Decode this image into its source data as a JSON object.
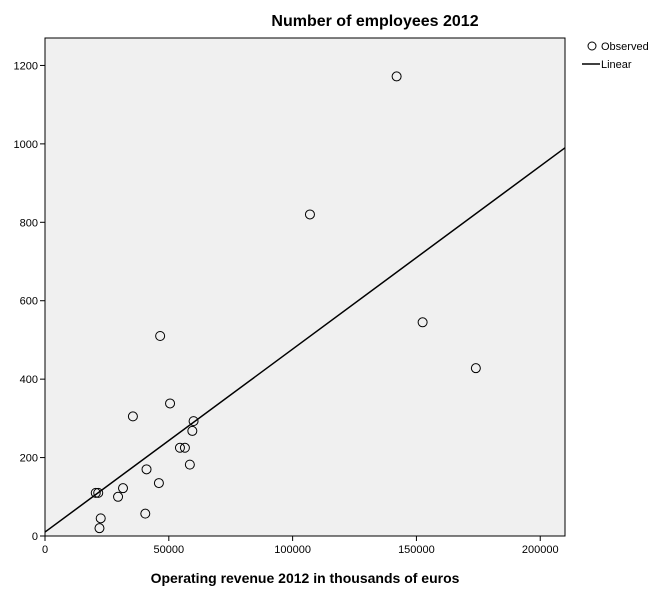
{
  "chart_data": {
    "type": "scatter",
    "title": "Number of employees 2012",
    "xlabel": "Operating revenue 2012 in thousands of euros",
    "ylabel": "",
    "xlim": [
      0,
      210000
    ],
    "ylim": [
      0,
      1270
    ],
    "xticks": [
      0,
      50000,
      100000,
      150000,
      200000
    ],
    "yticks": [
      0,
      200,
      400,
      600,
      800,
      1000,
      1200
    ],
    "grid": false,
    "legend_position": "top-right",
    "colors": {
      "plot_background": "#f0f0f0",
      "marker": "#000000",
      "line": "#000000"
    },
    "series": [
      {
        "name": "Observed",
        "kind": "markers",
        "points": [
          {
            "x": 20500,
            "y": 110
          },
          {
            "x": 21500,
            "y": 110
          },
          {
            "x": 22000,
            "y": 20
          },
          {
            "x": 22500,
            "y": 45
          },
          {
            "x": 29500,
            "y": 100
          },
          {
            "x": 31500,
            "y": 122
          },
          {
            "x": 35500,
            "y": 305
          },
          {
            "x": 40500,
            "y": 57
          },
          {
            "x": 41000,
            "y": 170
          },
          {
            "x": 46000,
            "y": 135
          },
          {
            "x": 46500,
            "y": 510
          },
          {
            "x": 50500,
            "y": 338
          },
          {
            "x": 54500,
            "y": 225
          },
          {
            "x": 56500,
            "y": 225
          },
          {
            "x": 58500,
            "y": 182
          },
          {
            "x": 59500,
            "y": 268
          },
          {
            "x": 60000,
            "y": 293
          },
          {
            "x": 107000,
            "y": 820
          },
          {
            "x": 142000,
            "y": 1172
          },
          {
            "x": 152500,
            "y": 545
          },
          {
            "x": 174000,
            "y": 428
          }
        ]
      },
      {
        "name": "Linear",
        "kind": "line",
        "points": [
          {
            "x": 0,
            "y": 10
          },
          {
            "x": 210000,
            "y": 990
          }
        ]
      }
    ]
  }
}
